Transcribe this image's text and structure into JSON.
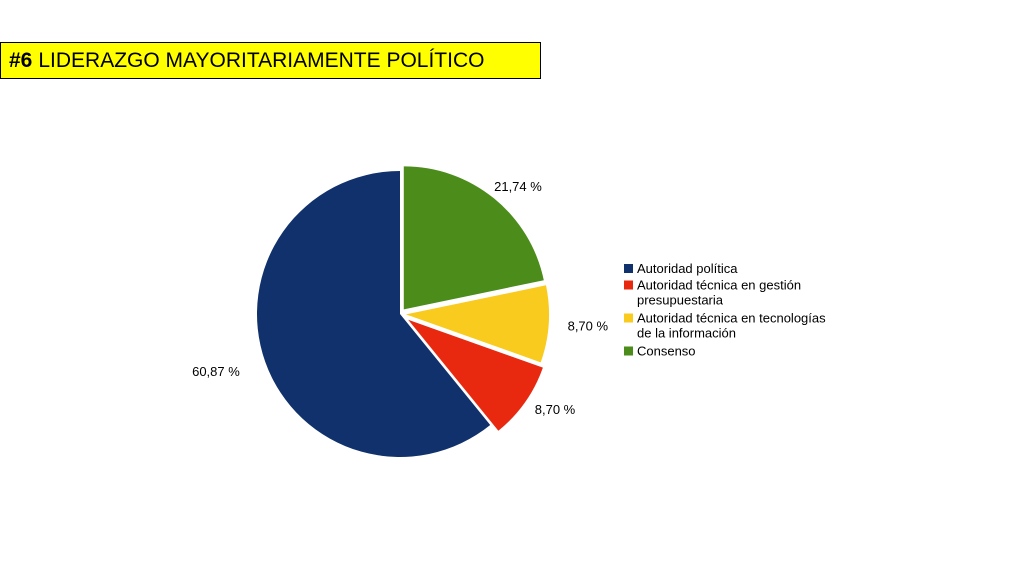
{
  "slide": {
    "number_label": "#6",
    "title": "LIDERAZGO MAYORITARIAMENTE POLÍTICO"
  },
  "chart_data": {
    "type": "pie",
    "title": "",
    "categories": [
      "Autoridad política",
      "Autoridad técnica en gestión presupuestaria",
      "Autoridad técnica en tecnologías de la información",
      "Consenso"
    ],
    "legend_lines": [
      [
        "Autoridad política"
      ],
      [
        "Autoridad técnica en gestión",
        "presupuestaria"
      ],
      [
        "Autoridad técnica en tecnologías",
        "de la información"
      ],
      [
        "Consenso"
      ]
    ],
    "values": [
      60.87,
      8.7,
      8.7,
      21.74
    ],
    "data_labels": [
      "60,87 %",
      "8,70 %",
      "8,70 %",
      "21,74 %"
    ],
    "colors": [
      "#10316b",
      "#e8290f",
      "#f8cb1e",
      "#4b8c1a"
    ],
    "legend_position": "right"
  }
}
